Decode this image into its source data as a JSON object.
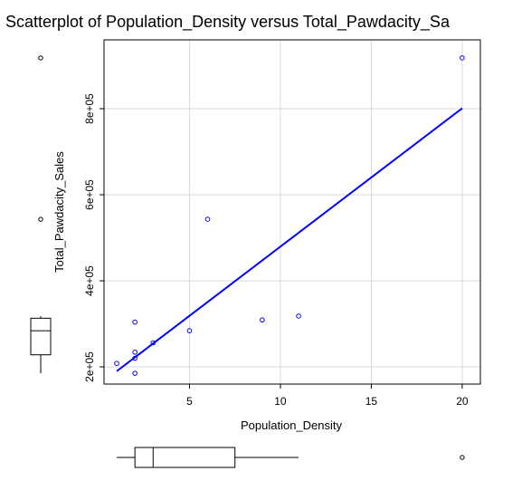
{
  "chart_data": {
    "type": "scatter",
    "title": "Scatterplot of Population_Density versus Total_Pawdacity_Sa",
    "xlabel": "Population_Density",
    "ylabel": "Total_Pawdacity_Sales",
    "xlim": [
      0.3,
      21
    ],
    "ylim": [
      160000,
      960000
    ],
    "x_ticks": [
      5,
      10,
      15,
      20
    ],
    "x_tick_labels": [
      "5",
      "10",
      "15",
      "20"
    ],
    "y_ticks": [
      200000,
      400000,
      600000,
      800000
    ],
    "y_tick_labels": [
      "2e+05",
      "4e+05",
      "6e+05",
      "8e+05"
    ],
    "grid": true,
    "points": [
      {
        "x": 1,
        "y": 208000
      },
      {
        "x": 2,
        "y": 185000
      },
      {
        "x": 2,
        "y": 220000
      },
      {
        "x": 2,
        "y": 234000
      },
      {
        "x": 2,
        "y": 304000
      },
      {
        "x": 3,
        "y": 256000
      },
      {
        "x": 5,
        "y": 284000
      },
      {
        "x": 6,
        "y": 543000
      },
      {
        "x": 9,
        "y": 309000
      },
      {
        "x": 11,
        "y": 318000
      },
      {
        "x": 20,
        "y": 918000
      }
    ],
    "fit_line": {
      "x1": 1,
      "y1": 190000,
      "x2": 20,
      "y2": 801000
    },
    "x_boxplot": {
      "min": 1,
      "q1": 2,
      "median": 3,
      "q3": 7.5,
      "whisker_max": 11,
      "outliers": [
        20
      ]
    },
    "y_boxplot": {
      "whisker_min": 185000,
      "q1": 228000,
      "median": 284000,
      "q3": 313000,
      "whisker_max": 318000,
      "outliers": [
        543000,
        918000
      ]
    },
    "colors": {
      "points": "#0000ff",
      "line": "#0000ff",
      "grid": "#d9d9d9",
      "box": "#000000"
    }
  }
}
